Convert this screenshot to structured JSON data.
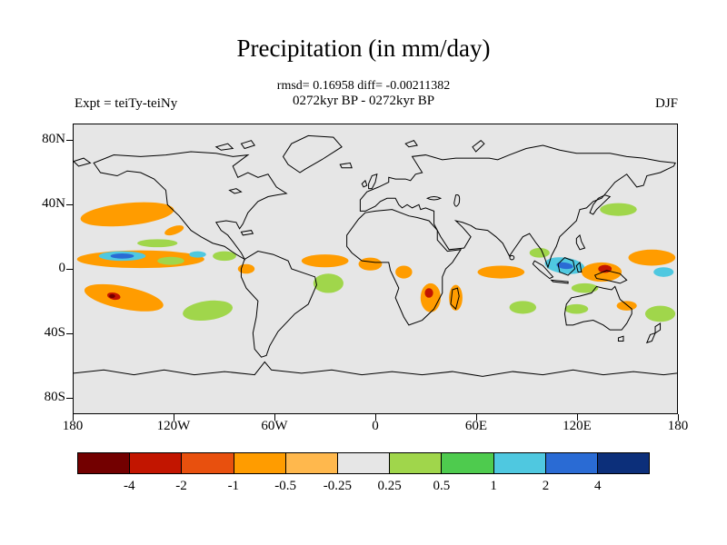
{
  "header": {
    "title": "Precipitation (in mm/day)",
    "stats": "rmsd= 0.16958 diff= -0.00211382",
    "period": "0272kyr BP - 0272kyr BP",
    "experiment": "Expt = teiTy-teiNy",
    "season": "DJF"
  },
  "axes": {
    "y_ticks": [
      "80N",
      "40N",
      "0",
      "40S",
      "80S"
    ],
    "x_ticks": [
      "180",
      "120W",
      "60W",
      "0",
      "60E",
      "120E",
      "180"
    ]
  },
  "colorbar": {
    "labels": [
      "-4",
      "-2",
      "-1",
      "-0.5",
      "-0.25",
      "0.25",
      "0.5",
      "1",
      "2",
      "4"
    ],
    "colors": [
      "#730000",
      "#c21500",
      "#e8500e",
      "#ff9c00",
      "#ffb84d",
      "#e6e6e6",
      "#a0d64b",
      "#4ecb4e",
      "#4fc8e0",
      "#2a6bd4",
      "#0c2f7a"
    ]
  },
  "chart_data": {
    "type": "heatmap",
    "title": "Precipitation (in mm/day)",
    "subtitle": "0272kyr BP - 0272kyr BP",
    "rmsd": 0.16958,
    "diff": -0.00211382,
    "season": "DJF",
    "experiment": "teiTy-teiNy",
    "units": "mm/day",
    "projection": "equirectangular",
    "lon_range": [
      -180,
      180
    ],
    "lat_range": [
      -90,
      90
    ],
    "neutral_color": "#e6e6e6",
    "contour_levels": [
      -4,
      -2,
      -1,
      -0.5,
      -0.25,
      0.25,
      0.5,
      1,
      2,
      4
    ],
    "levels_note": "ci indexes colorbar.colors; segment i spans the interval between adjacent contour levels (segment 5 is the neutral -0.25..0.25 band)",
    "anomalies": [
      {
        "lon": -148,
        "lat": 34,
        "rlon": 28,
        "rlat": 7,
        "rot": -6,
        "ci": 3
      },
      {
        "lon": -120,
        "lat": 24,
        "rlon": 6,
        "rlat": 2.5,
        "rot": -20,
        "ci": 3
      },
      {
        "lon": -130,
        "lat": 16,
        "rlon": 12,
        "rlat": 2.5,
        "rot": 0,
        "ci": 6
      },
      {
        "lon": -140,
        "lat": 6,
        "rlon": 38,
        "rlat": 5.5,
        "rot": 0,
        "ci": 3
      },
      {
        "lon": -151,
        "lat": 8,
        "rlon": 14,
        "rlat": 3,
        "rot": 0,
        "ci": 8
      },
      {
        "lon": -151,
        "lat": 8,
        "rlon": 7,
        "rlat": 1.6,
        "rot": 0,
        "ci": 9
      },
      {
        "lon": -122,
        "lat": 5,
        "rlon": 8,
        "rlat": 2.5,
        "rot": 0,
        "ci": 6
      },
      {
        "lon": -106,
        "lat": 9,
        "rlon": 5,
        "rlat": 2,
        "rot": 0,
        "ci": 8
      },
      {
        "lon": -90,
        "lat": 8,
        "rlon": 7,
        "rlat": 3,
        "rot": 0,
        "ci": 6
      },
      {
        "lon": -150,
        "lat": -18,
        "rlon": 24,
        "rlat": 7,
        "rot": 12,
        "ci": 3
      },
      {
        "lon": -156,
        "lat": -17,
        "rlon": 4,
        "rlat": 2.2,
        "rot": 12,
        "ci": 1
      },
      {
        "lon": -157,
        "lat": -17,
        "rlon": 1.8,
        "rlat": 1.2,
        "rot": 0,
        "ci": 0
      },
      {
        "lon": -100,
        "lat": -26,
        "rlon": 15,
        "rlat": 6,
        "rot": -8,
        "ci": 6
      },
      {
        "lon": -77,
        "lat": 0,
        "rlon": 5,
        "rlat": 3,
        "rot": 0,
        "ci": 3
      },
      {
        "lon": -30,
        "lat": 5,
        "rlon": 14,
        "rlat": 4,
        "rot": 0,
        "ci": 3
      },
      {
        "lon": -28,
        "lat": -9,
        "rlon": 9,
        "rlat": 6,
        "rot": 0,
        "ci": 6
      },
      {
        "lon": -3,
        "lat": 3,
        "rlon": 7,
        "rlat": 4,
        "rot": 0,
        "ci": 3
      },
      {
        "lon": 17,
        "lat": -2,
        "rlon": 5,
        "rlat": 4,
        "rot": 0,
        "ci": 3
      },
      {
        "lon": 33,
        "lat": -18,
        "rlon": 6,
        "rlat": 9,
        "rot": 0,
        "ci": 3
      },
      {
        "lon": 32,
        "lat": -15,
        "rlon": 2.5,
        "rlat": 3,
        "rot": 0,
        "ci": 1
      },
      {
        "lon": 48,
        "lat": -18,
        "rlon": 4,
        "rlat": 8,
        "rot": 0,
        "ci": 3
      },
      {
        "lon": 75,
        "lat": -2,
        "rlon": 14,
        "rlat": 4,
        "rot": 0,
        "ci": 3
      },
      {
        "lon": 88,
        "lat": -24,
        "rlon": 8,
        "rlat": 4,
        "rot": 0,
        "ci": 6
      },
      {
        "lon": 98,
        "lat": 10,
        "rlon": 6,
        "rlat": 3,
        "rot": 0,
        "ci": 6
      },
      {
        "lon": 113,
        "lat": 2,
        "rlon": 12,
        "rlat": 5,
        "rot": 8,
        "ci": 8
      },
      {
        "lon": 113,
        "lat": 2,
        "rlon": 5,
        "rlat": 2,
        "rot": 8,
        "ci": 9
      },
      {
        "lon": 125,
        "lat": -12,
        "rlon": 8,
        "rlat": 3,
        "rot": 0,
        "ci": 6
      },
      {
        "lon": 135,
        "lat": -2,
        "rlon": 12,
        "rlat": 6,
        "rot": 0,
        "ci": 3
      },
      {
        "lon": 137,
        "lat": 0,
        "rlon": 4,
        "rlat": 2.5,
        "rot": 0,
        "ci": 1
      },
      {
        "lon": 120,
        "lat": -25,
        "rlon": 7,
        "rlat": 3,
        "rot": 0,
        "ci": 6
      },
      {
        "lon": 150,
        "lat": -23,
        "rlon": 6,
        "rlat": 3,
        "rot": 0,
        "ci": 3
      },
      {
        "lon": 145,
        "lat": 37,
        "rlon": 11,
        "rlat": 4,
        "rot": 0,
        "ci": 6
      },
      {
        "lon": 165,
        "lat": 7,
        "rlon": 14,
        "rlat": 5,
        "rot": 0,
        "ci": 3
      },
      {
        "lon": 172,
        "lat": -2,
        "rlon": 6,
        "rlat": 3,
        "rot": 0,
        "ci": 8
      },
      {
        "lon": 170,
        "lat": -28,
        "rlon": 9,
        "rlat": 5,
        "rot": 0,
        "ci": 6
      }
    ]
  }
}
